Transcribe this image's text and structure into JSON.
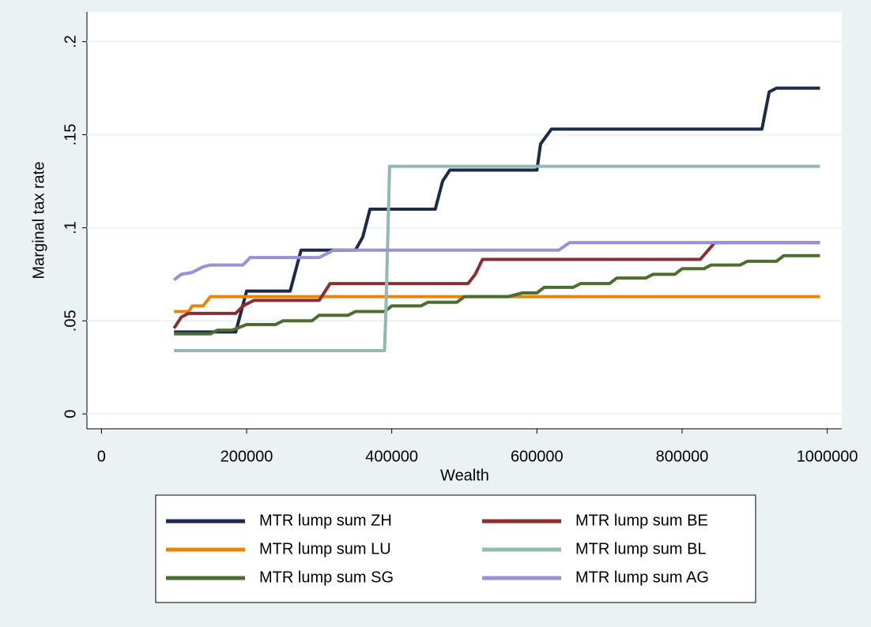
{
  "chart_data": {
    "type": "line",
    "x_label": "Wealth",
    "y_label": "Marginal tax rate",
    "xlim": [
      -20000,
      1020000
    ],
    "xticks": [
      0,
      200000,
      400000,
      600000,
      800000,
      1000000
    ],
    "ylim": [
      -0.008,
      0.216
    ],
    "yticks": [
      0,
      {
        "value": 0.05,
        "label": ".05"
      },
      {
        "value": 0.1,
        "label": ".1"
      },
      {
        "value": 0.15,
        "label": ".15"
      },
      {
        "value": 0.2,
        "label": ".2"
      }
    ],
    "grid": true,
    "series": [
      {
        "name": "MTR lump sum ZH",
        "color": "#1c2b4b",
        "x": [
          100000,
          185000,
          200000,
          260000,
          275000,
          350000,
          360000,
          370000,
          460000,
          470000,
          480000,
          600000,
          605000,
          620000,
          910000,
          920000,
          930000,
          990000
        ],
        "values": [
          0.044,
          0.044,
          0.066,
          0.066,
          0.088,
          0.088,
          0.095,
          0.11,
          0.11,
          0.125,
          0.131,
          0.131,
          0.145,
          0.153,
          0.153,
          0.173,
          0.175,
          0.175
        ]
      },
      {
        "name": "MTR lump sum LU",
        "color": "#e8850c",
        "x": [
          100000,
          120000,
          125000,
          140000,
          150000,
          990000
        ],
        "values": [
          0.055,
          0.055,
          0.058,
          0.058,
          0.063,
          0.063
        ]
      },
      {
        "name": "MTR lump sum SG",
        "color": "#4b6e2e",
        "x": [
          100000,
          150000,
          160000,
          180000,
          200000,
          240000,
          250000,
          290000,
          300000,
          340000,
          350000,
          390000,
          400000,
          440000,
          450000,
          490000,
          500000,
          560000,
          580000,
          600000,
          610000,
          650000,
          660000,
          700000,
          710000,
          750000,
          760000,
          790000,
          800000,
          830000,
          840000,
          880000,
          890000,
          930000,
          940000,
          990000
        ],
        "values": [
          0.043,
          0.043,
          0.045,
          0.045,
          0.048,
          0.048,
          0.05,
          0.05,
          0.053,
          0.053,
          0.055,
          0.055,
          0.058,
          0.058,
          0.06,
          0.06,
          0.063,
          0.063,
          0.065,
          0.065,
          0.068,
          0.068,
          0.07,
          0.07,
          0.073,
          0.073,
          0.075,
          0.075,
          0.078,
          0.078,
          0.08,
          0.08,
          0.082,
          0.082,
          0.085,
          0.085
        ]
      },
      {
        "name": "MTR lump sum BE",
        "color": "#8c2d2f",
        "x": [
          100000,
          110000,
          120000,
          185000,
          195000,
          210000,
          300000,
          315000,
          505000,
          515000,
          525000,
          825000,
          845000,
          990000
        ],
        "values": [
          0.046,
          0.052,
          0.054,
          0.054,
          0.058,
          0.061,
          0.061,
          0.07,
          0.07,
          0.075,
          0.083,
          0.083,
          0.092,
          0.092
        ]
      },
      {
        "name": "MTR lump sum BL",
        "color": "#93b7b1",
        "x": [
          100000,
          390000,
          392000,
          397000,
          990000
        ],
        "values": [
          0.034,
          0.034,
          0.056,
          0.133,
          0.133
        ]
      },
      {
        "name": "MTR lump sum AG",
        "color": "#9b8fd8",
        "x": [
          100000,
          110000,
          125000,
          140000,
          150000,
          195000,
          205000,
          300000,
          320000,
          630000,
          645000,
          990000
        ],
        "values": [
          0.072,
          0.075,
          0.076,
          0.079,
          0.08,
          0.08,
          0.084,
          0.084,
          0.088,
          0.088,
          0.092,
          0.092
        ]
      }
    ]
  }
}
